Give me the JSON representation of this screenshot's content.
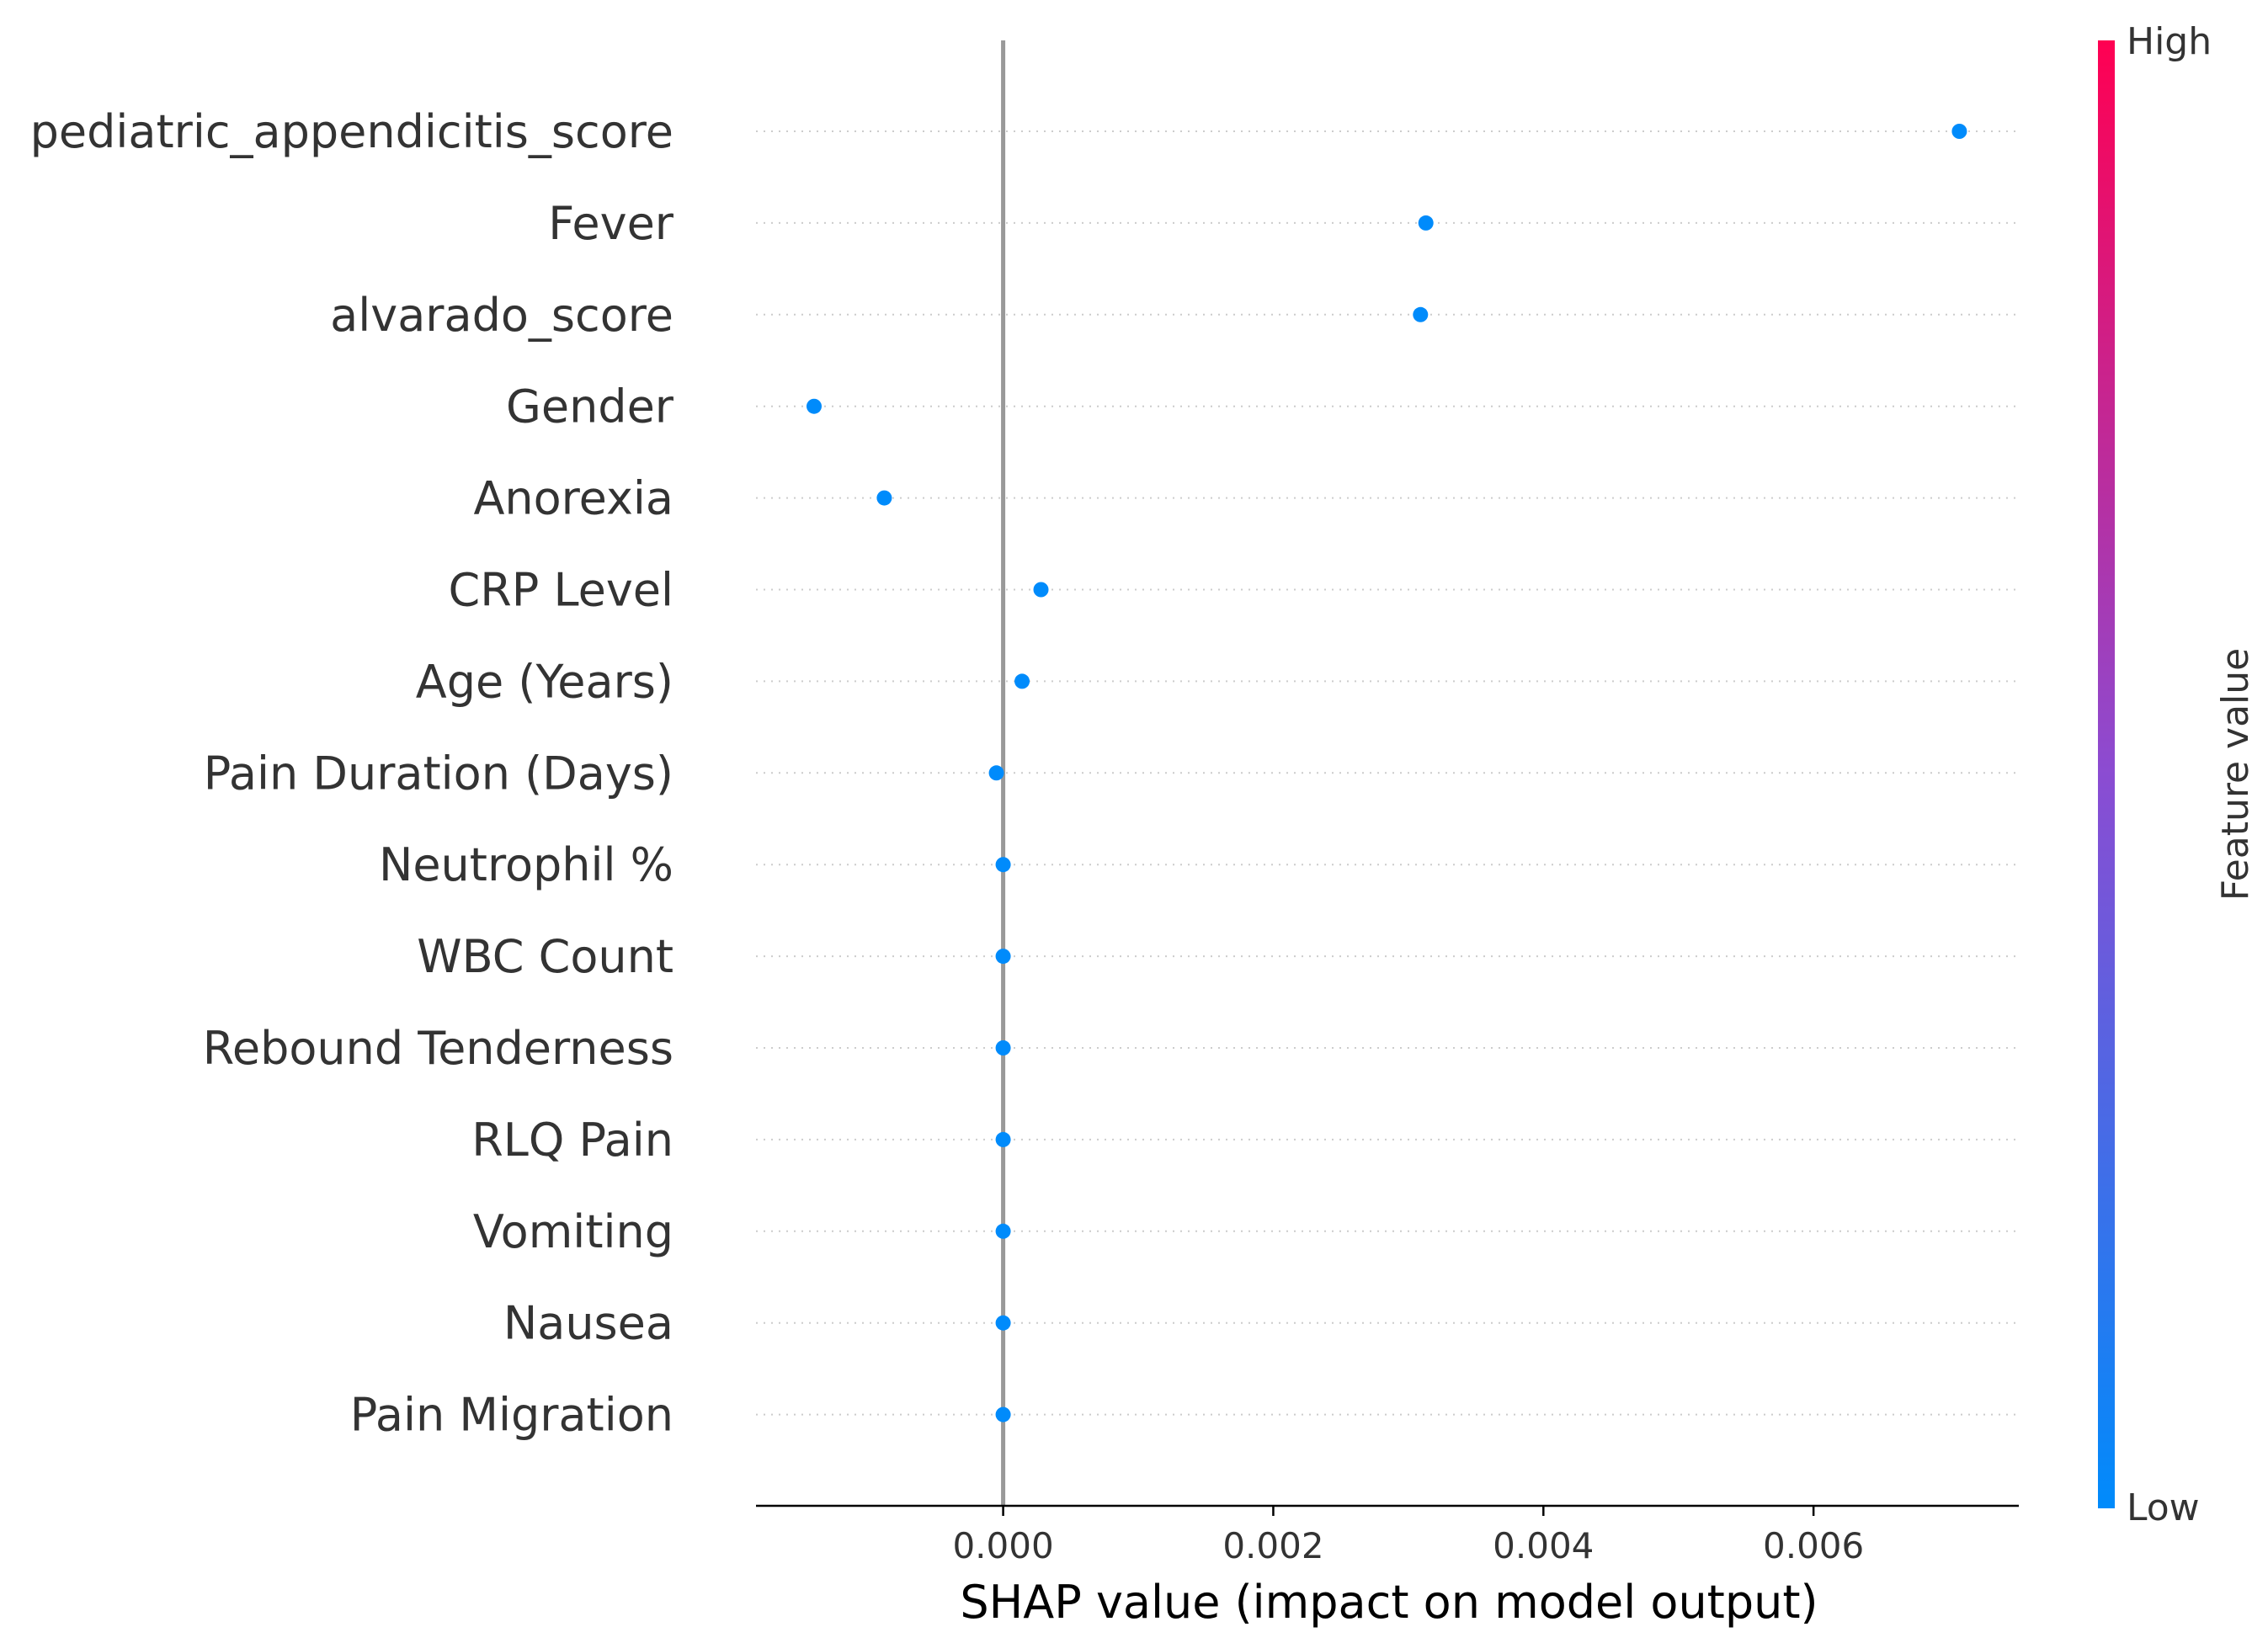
{
  "chart_data": {
    "type": "scatter",
    "title": "",
    "xlabel": "SHAP value (impact on model output)",
    "ylabel": "",
    "xlim": [
      -0.00183,
      0.00752
    ],
    "xticks": [
      0.0,
      0.002,
      0.004,
      0.006
    ],
    "xtick_labels": [
      "0.000",
      "0.002",
      "0.004",
      "0.006"
    ],
    "grid": "dotted horizontal row lines",
    "features": [
      "pediatric_appendicitis_score",
      "Fever",
      "alvarado_score",
      "Gender",
      "Anorexia",
      "CRP Level",
      "Age (Years)",
      "Pain Duration (Days)",
      "Neutrophil %",
      "WBC Count",
      "Rebound Tenderness",
      "RLQ Pain",
      "Vomiting",
      "Nausea",
      "Pain Migration"
    ],
    "values": [
      0.00708,
      0.00313,
      0.00309,
      -0.0014,
      -0.00088,
      0.00028,
      0.00014,
      -5e-05,
      0.0,
      0.0,
      0.0,
      0.0,
      0.0,
      0.0,
      0.0
    ],
    "point_color": "#008bfb",
    "zero_line_color": "#999999",
    "colorbar": {
      "label": "Feature value",
      "high_label": "High",
      "low_label": "Low",
      "high_color": "#ff0052",
      "mid_color": "#8b4cd2",
      "low_color": "#008bfb",
      "placement": "right"
    }
  }
}
